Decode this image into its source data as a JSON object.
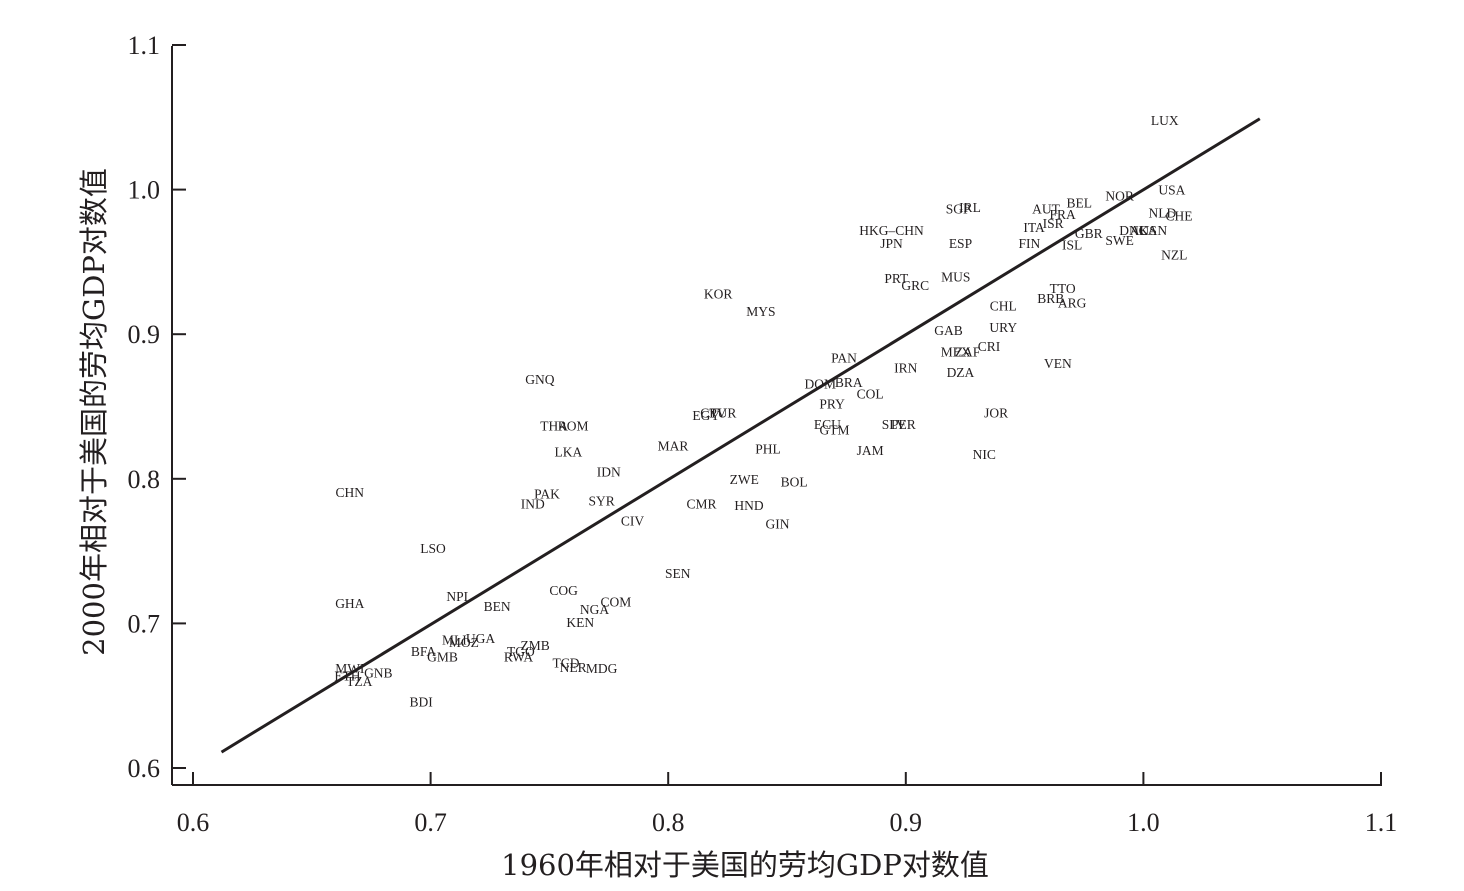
{
  "chart_data": {
    "type": "scatter",
    "xlabel": "1960年相对于美国的劳均GDP对数值",
    "ylabel": "2000年相对于美国的劳均GDP对数值",
    "xlim": [
      0.6,
      1.1
    ],
    "ylim": [
      0.6,
      1.1
    ],
    "x_ticks": [
      "0.6",
      "0.7",
      "0.8",
      "0.9",
      "1.0",
      "1.1"
    ],
    "y_ticks": [
      "0.6",
      "0.7",
      "0.8",
      "0.9",
      "1.0",
      "1.1"
    ],
    "grid": false,
    "fit_line": {
      "x": [
        0.612,
        1.049
      ],
      "y": [
        0.611,
        1.049
      ]
    },
    "points": [
      {
        "label": "LUX",
        "x": 1.009,
        "y": 1.048
      },
      {
        "label": "USA",
        "x": 1.012,
        "y": 1.0
      },
      {
        "label": "NOR",
        "x": 0.99,
        "y": 0.996
      },
      {
        "label": "BEL",
        "x": 0.973,
        "y": 0.991
      },
      {
        "label": "AUT",
        "x": 0.959,
        "y": 0.987
      },
      {
        "label": "FRA",
        "x": 0.966,
        "y": 0.983
      },
      {
        "label": "NLD",
        "x": 1.008,
        "y": 0.984
      },
      {
        "label": "CHE",
        "x": 1.015,
        "y": 0.982
      },
      {
        "label": "ISR",
        "x": 0.962,
        "y": 0.977
      },
      {
        "label": "ITA",
        "x": 0.954,
        "y": 0.974
      },
      {
        "label": "GBR",
        "x": 0.977,
        "y": 0.97
      },
      {
        "label": "DNK",
        "x": 0.996,
        "y": 0.972
      },
      {
        "label": "AUS",
        "x": 1.0,
        "y": 0.972
      },
      {
        "label": "CAN",
        "x": 1.004,
        "y": 0.972
      },
      {
        "label": "SWE",
        "x": 0.99,
        "y": 0.965
      },
      {
        "label": "ISL",
        "x": 0.97,
        "y": 0.962
      },
      {
        "label": "FIN",
        "x": 0.952,
        "y": 0.963
      },
      {
        "label": "SGP",
        "x": 0.922,
        "y": 0.987
      },
      {
        "label": "IRL",
        "x": 0.927,
        "y": 0.988
      },
      {
        "label": "HKG–CHN",
        "x": 0.894,
        "y": 0.972
      },
      {
        "label": "JPN",
        "x": 0.894,
        "y": 0.963
      },
      {
        "label": "ESP",
        "x": 0.923,
        "y": 0.963
      },
      {
        "label": "NZL",
        "x": 1.013,
        "y": 0.955
      },
      {
        "label": "MUS",
        "x": 0.921,
        "y": 0.94
      },
      {
        "label": "PRT",
        "x": 0.896,
        "y": 0.939
      },
      {
        "label": "GRC",
        "x": 0.904,
        "y": 0.934
      },
      {
        "label": "TTO",
        "x": 0.966,
        "y": 0.932
      },
      {
        "label": "CHL",
        "x": 0.941,
        "y": 0.92
      },
      {
        "label": "BRB",
        "x": 0.961,
        "y": 0.925
      },
      {
        "label": "ARG",
        "x": 0.97,
        "y": 0.922
      },
      {
        "label": "URY",
        "x": 0.941,
        "y": 0.905
      },
      {
        "label": "GAB",
        "x": 0.918,
        "y": 0.903
      },
      {
        "label": "CRI",
        "x": 0.935,
        "y": 0.892
      },
      {
        "label": "MEX",
        "x": 0.921,
        "y": 0.888
      },
      {
        "label": "ZAF",
        "x": 0.926,
        "y": 0.888
      },
      {
        "label": "VEN",
        "x": 0.964,
        "y": 0.88
      },
      {
        "label": "DZA",
        "x": 0.923,
        "y": 0.874
      },
      {
        "label": "IRN",
        "x": 0.9,
        "y": 0.877
      },
      {
        "label": "PAN",
        "x": 0.874,
        "y": 0.884
      },
      {
        "label": "DOM",
        "x": 0.864,
        "y": 0.866
      },
      {
        "label": "BRA",
        "x": 0.876,
        "y": 0.867
      },
      {
        "label": "COL",
        "x": 0.885,
        "y": 0.859
      },
      {
        "label": "PRY",
        "x": 0.869,
        "y": 0.852
      },
      {
        "label": "KOR",
        "x": 0.821,
        "y": 0.928
      },
      {
        "label": "MYS",
        "x": 0.839,
        "y": 0.916
      },
      {
        "label": "ECU",
        "x": 0.867,
        "y": 0.838
      },
      {
        "label": "GTM",
        "x": 0.87,
        "y": 0.834
      },
      {
        "label": "SLV",
        "x": 0.895,
        "y": 0.838
      },
      {
        "label": "PER",
        "x": 0.899,
        "y": 0.838
      },
      {
        "label": "JOR",
        "x": 0.938,
        "y": 0.846
      },
      {
        "label": "JAM",
        "x": 0.885,
        "y": 0.82
      },
      {
        "label": "NIC",
        "x": 0.933,
        "y": 0.817
      },
      {
        "label": "PHL",
        "x": 0.842,
        "y": 0.821
      },
      {
        "label": "MAR",
        "x": 0.802,
        "y": 0.823
      },
      {
        "label": "EGY",
        "x": 0.816,
        "y": 0.844
      },
      {
        "label": "CPV",
        "x": 0.819,
        "y": 0.846
      },
      {
        "label": "TUR",
        "x": 0.823,
        "y": 0.846
      },
      {
        "label": "GNQ",
        "x": 0.746,
        "y": 0.869
      },
      {
        "label": "THA",
        "x": 0.752,
        "y": 0.837
      },
      {
        "label": "ROM",
        "x": 0.76,
        "y": 0.837
      },
      {
        "label": "LKA",
        "x": 0.758,
        "y": 0.819
      },
      {
        "label": "IDN",
        "x": 0.775,
        "y": 0.805
      },
      {
        "label": "ZWE",
        "x": 0.832,
        "y": 0.8
      },
      {
        "label": "BOL",
        "x": 0.853,
        "y": 0.798
      },
      {
        "label": "PAK",
        "x": 0.749,
        "y": 0.79
      },
      {
        "label": "SYR",
        "x": 0.772,
        "y": 0.785
      },
      {
        "label": "IND",
        "x": 0.743,
        "y": 0.783
      },
      {
        "label": "CMR",
        "x": 0.814,
        "y": 0.783
      },
      {
        "label": "HND",
        "x": 0.834,
        "y": 0.782
      },
      {
        "label": "CIV",
        "x": 0.785,
        "y": 0.771
      },
      {
        "label": "GIN",
        "x": 0.846,
        "y": 0.769
      },
      {
        "label": "CHN",
        "x": 0.666,
        "y": 0.791
      },
      {
        "label": "LSO",
        "x": 0.701,
        "y": 0.752
      },
      {
        "label": "SEN",
        "x": 0.804,
        "y": 0.735
      },
      {
        "label": "GHA",
        "x": 0.666,
        "y": 0.714
      },
      {
        "label": "NPL",
        "x": 0.712,
        "y": 0.719
      },
      {
        "label": "BEN",
        "x": 0.728,
        "y": 0.712
      },
      {
        "label": "COG",
        "x": 0.756,
        "y": 0.723
      },
      {
        "label": "COM",
        "x": 0.778,
        "y": 0.715
      },
      {
        "label": "NGA",
        "x": 0.769,
        "y": 0.71
      },
      {
        "label": "KEN",
        "x": 0.763,
        "y": 0.701
      },
      {
        "label": "MLI",
        "x": 0.71,
        "y": 0.689
      },
      {
        "label": "MOZ",
        "x": 0.714,
        "y": 0.687
      },
      {
        "label": "UGA",
        "x": 0.721,
        "y": 0.69
      },
      {
        "label": "ZMB",
        "x": 0.744,
        "y": 0.685
      },
      {
        "label": "TGO",
        "x": 0.738,
        "y": 0.681
      },
      {
        "label": "RWA",
        "x": 0.737,
        "y": 0.677
      },
      {
        "label": "BFA",
        "x": 0.697,
        "y": 0.681
      },
      {
        "label": "GMB",
        "x": 0.705,
        "y": 0.677
      },
      {
        "label": "TCD",
        "x": 0.757,
        "y": 0.673
      },
      {
        "label": "NER",
        "x": 0.76,
        "y": 0.67
      },
      {
        "label": "MDG",
        "x": 0.772,
        "y": 0.669
      },
      {
        "label": "MWI",
        "x": 0.666,
        "y": 0.669
      },
      {
        "label": "ETH",
        "x": 0.665,
        "y": 0.664
      },
      {
        "label": "GNB",
        "x": 0.678,
        "y": 0.666
      },
      {
        "label": "TZA",
        "x": 0.67,
        "y": 0.66
      },
      {
        "label": "BDI",
        "x": 0.696,
        "y": 0.646
      }
    ]
  }
}
